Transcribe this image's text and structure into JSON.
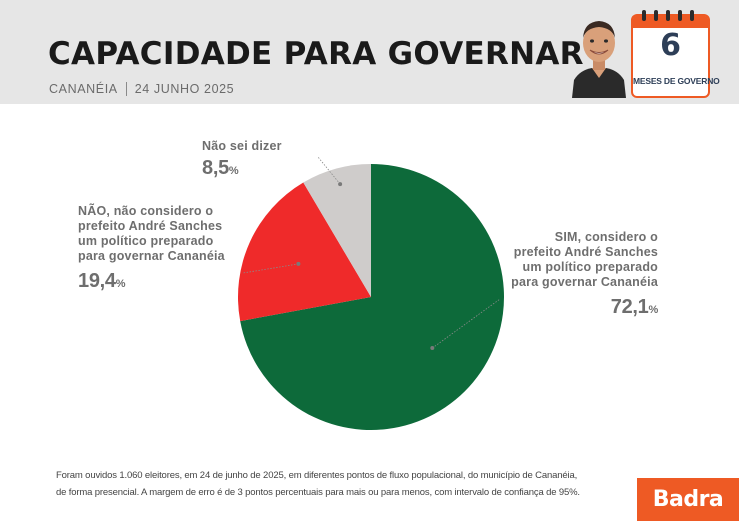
{
  "header": {
    "title": "CAPACIDADE PARA GOVERNAR",
    "city": "CANANÉIA",
    "date": "24 JUNHO 2025",
    "badge": {
      "number": "6",
      "label": "MESES DE GOVERNO"
    }
  },
  "chart_data": {
    "type": "pie",
    "title": "CAPACIDADE PARA GOVERNAR",
    "slices": [
      {
        "label_lines": [
          "SIM, considero o",
          "prefeito André Sanches",
          "um político preparado",
          "para governar Cananéia"
        ],
        "value": 72.1,
        "display": "72,1",
        "unit": "%",
        "color": "#0d6a3a"
      },
      {
        "label_lines": [
          "NÃO, não considero o",
          "prefeito André Sanches",
          "um político preparado",
          "para governar Cananéia"
        ],
        "value": 19.4,
        "display": "19,4",
        "unit": "%",
        "color": "#ef2a2a"
      },
      {
        "label_lines": [
          "Não sei dizer"
        ],
        "value": 8.5,
        "display": "8,5",
        "unit": "%",
        "color": "#cfcccb"
      }
    ]
  },
  "footnote": {
    "line1": "Foram ouvidos 1.060 eleitores, em 24 de junho de 2025, em diferentes pontos de fluxo populacional, do município de Cananéia,",
    "line2": "de forma presencial. A margem de erro é de 3 pontos percentuais para mais ou para menos, com intervalo de confiança de 95%."
  },
  "brand": "Badra",
  "colors": {
    "accent": "#ee5a24",
    "header_bg": "#e6e6e6"
  }
}
